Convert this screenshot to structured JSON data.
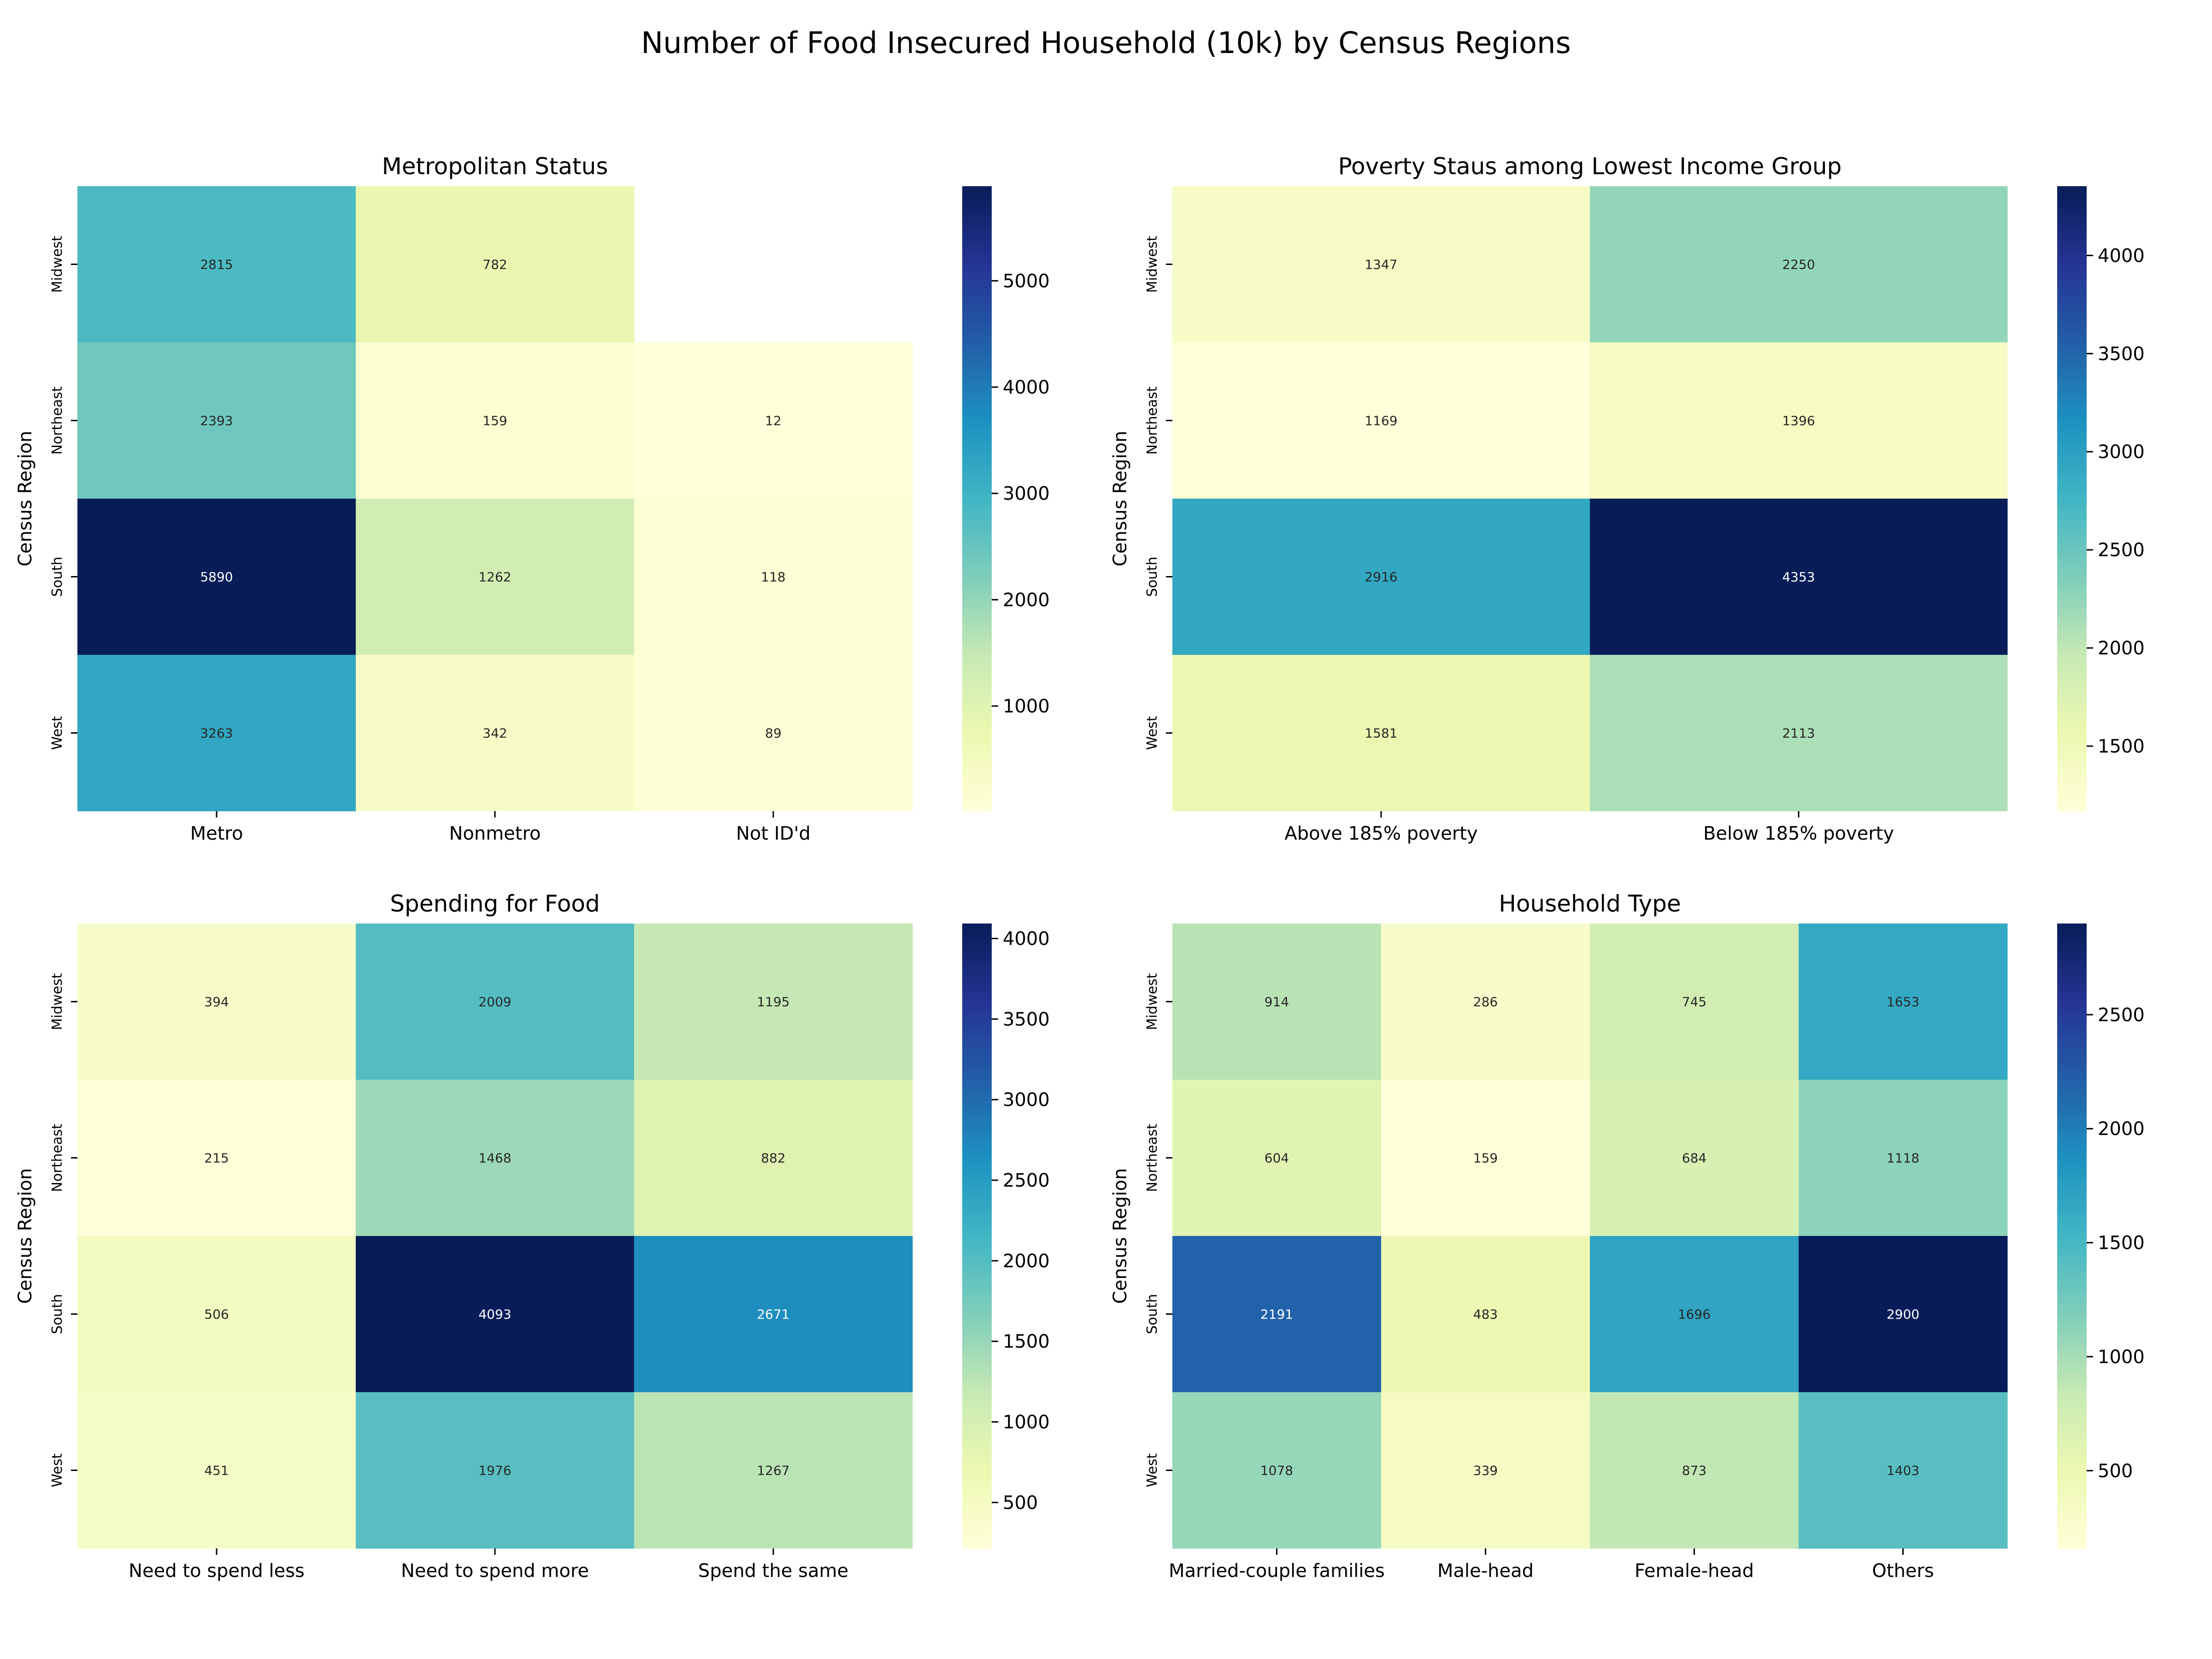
{
  "title": "Number of Food Insecured Household (10k) by Census Regions",
  "chart_data": [
    {
      "type": "heatmap",
      "title": "Metropolitan Status",
      "ylabel": "Census Region",
      "xlabel": "",
      "rows": [
        "Midwest",
        "Northeast",
        "South",
        "West"
      ],
      "columns": [
        "Metro",
        "Nonmetro",
        "Not ID'd"
      ],
      "values": [
        [
          2815,
          782,
          null
        ],
        [
          2393,
          159,
          12
        ],
        [
          5890,
          1262,
          118
        ],
        [
          3263,
          342,
          89
        ]
      ],
      "colorbar": {
        "min": 12,
        "max": 5890,
        "ticks": [
          1000,
          2000,
          3000,
          4000,
          5000
        ]
      },
      "colormap": "YlGnBu"
    },
    {
      "type": "heatmap",
      "title": "Poverty Staus among Lowest Income Group",
      "ylabel": "Census Region",
      "xlabel": "",
      "rows": [
        "Midwest",
        "Northeast",
        "South",
        "West"
      ],
      "columns": [
        "Above 185% poverty",
        "Below 185% poverty"
      ],
      "values": [
        [
          1347,
          2250
        ],
        [
          1169,
          1396
        ],
        [
          2916,
          4353
        ],
        [
          1581,
          2113
        ]
      ],
      "colorbar": {
        "min": 1169,
        "max": 4353,
        "ticks": [
          1500,
          2000,
          2500,
          3000,
          3500,
          4000
        ]
      },
      "colormap": "YlGnBu"
    },
    {
      "type": "heatmap",
      "title": "Spending for Food",
      "ylabel": "Census Region",
      "xlabel": "",
      "rows": [
        "Midwest",
        "Northeast",
        "South",
        "West"
      ],
      "columns": [
        "Need to spend less",
        "Need to spend more",
        "Spend the same"
      ],
      "values": [
        [
          394,
          2009,
          1195
        ],
        [
          215,
          1468,
          882
        ],
        [
          506,
          4093,
          2671
        ],
        [
          451,
          1976,
          1267
        ]
      ],
      "colorbar": {
        "min": 215,
        "max": 4093,
        "ticks": [
          500,
          1000,
          1500,
          2000,
          2500,
          3000,
          3500,
          4000
        ]
      },
      "colormap": "YlGnBu"
    },
    {
      "type": "heatmap",
      "title": "Household Type",
      "ylabel": "Census Region",
      "xlabel": "",
      "rows": [
        "Midwest",
        "Northeast",
        "South",
        "West"
      ],
      "columns": [
        "Married-couple families",
        "Male-head",
        "Female-head",
        "Others"
      ],
      "values": [
        [
          914,
          286,
          745,
          1653
        ],
        [
          604,
          159,
          684,
          1118
        ],
        [
          2191,
          483,
          1696,
          2900
        ],
        [
          1078,
          339,
          873,
          1403
        ]
      ],
      "colorbar": {
        "min": 159,
        "max": 2900,
        "ticks": [
          500,
          1000,
          1500,
          2000,
          2500
        ]
      },
      "colormap": "YlGnBu"
    }
  ]
}
